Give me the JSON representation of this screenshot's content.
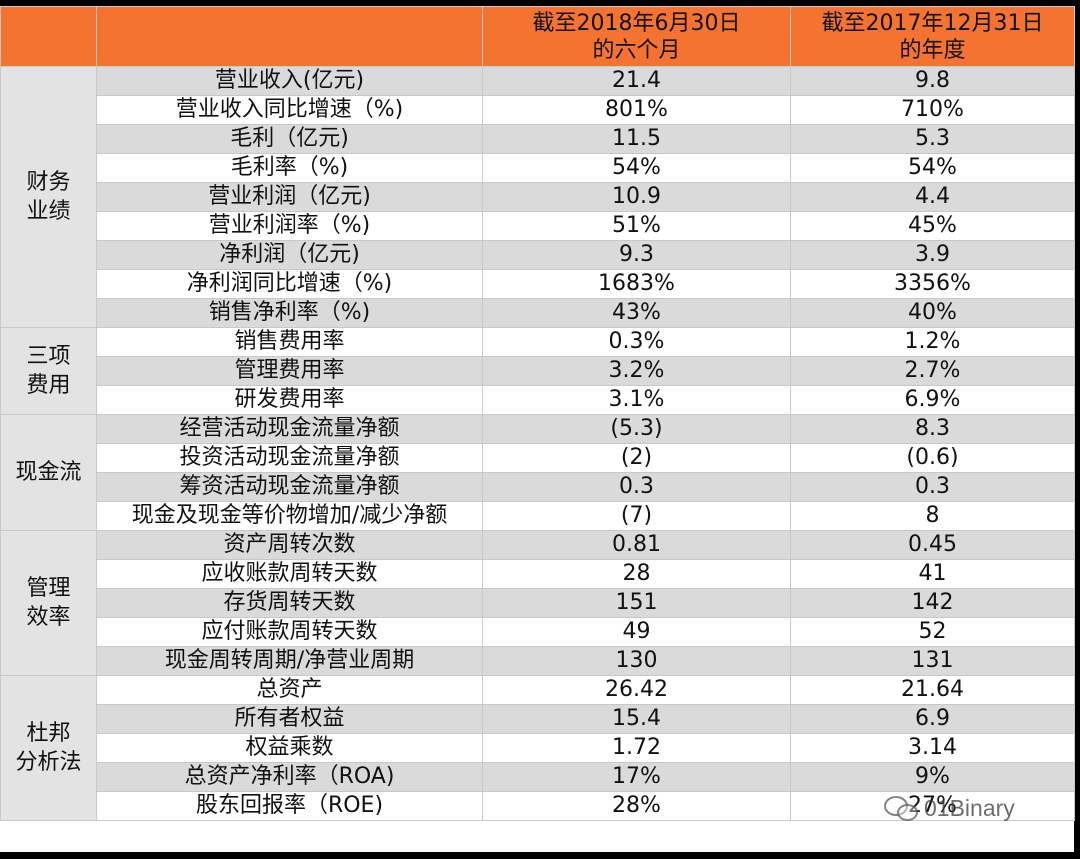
{
  "table": {
    "columns": [
      "",
      "截至2018年6月30日的六个月",
      "截至2017年12月31日的年度"
    ],
    "header": {
      "col1_line1": "截至2018年6月30日",
      "col1_line2": "的六个月",
      "col2_line1": "截至2017年12月31日",
      "col2_line2": "的年度"
    },
    "groups": [
      {
        "label_lines": [
          "财务",
          "业绩"
        ],
        "rows": [
          {
            "metric": "营业收入(亿元)",
            "v2018": "21.4",
            "v2017": "9.8"
          },
          {
            "metric": "营业收入同比增速（%)",
            "v2018": "801%",
            "v2017": "710%"
          },
          {
            "metric": "毛利（亿元)",
            "v2018": "11.5",
            "v2017": "5.3"
          },
          {
            "metric": "毛利率（%)",
            "v2018": "54%",
            "v2017": "54%"
          },
          {
            "metric": "营业利润（亿元)",
            "v2018": "10.9",
            "v2017": "4.4"
          },
          {
            "metric": "营业利润率（%)",
            "v2018": "51%",
            "v2017": "45%"
          },
          {
            "metric": "净利润（亿元)",
            "v2018": "9.3",
            "v2017": "3.9"
          },
          {
            "metric": "净利润同比增速（%)",
            "v2018": "1683%",
            "v2017": "3356%"
          },
          {
            "metric": "销售净利率（%)",
            "v2018": "43%",
            "v2017": "40%"
          }
        ]
      },
      {
        "label_lines": [
          "三项",
          "费用"
        ],
        "rows": [
          {
            "metric": "销售费用率",
            "v2018": "0.3%",
            "v2017": "1.2%"
          },
          {
            "metric": "管理费用率",
            "v2018": "3.2%",
            "v2017": "2.7%"
          },
          {
            "metric": "研发费用率",
            "v2018": "3.1%",
            "v2017": "6.9%"
          }
        ]
      },
      {
        "label_lines": [
          "现金流"
        ],
        "rows": [
          {
            "metric": "经营活动现金流量净额",
            "v2018": "(5.3)",
            "v2017": "8.3"
          },
          {
            "metric": "投资活动现金流量净额",
            "v2018": "(2)",
            "v2017": "(0.6)"
          },
          {
            "metric": "筹资活动现金流量净额",
            "v2018": "0.3",
            "v2017": "0.3"
          },
          {
            "metric": "现金及现金等价物增加/减少净额",
            "v2018": "(7)",
            "v2017": "8"
          }
        ]
      },
      {
        "label_lines": [
          "管理",
          "效率"
        ],
        "rows": [
          {
            "metric": "资产周转次数",
            "v2018": "0.81",
            "v2017": "0.45"
          },
          {
            "metric": "应收账款周转天数",
            "v2018": "28",
            "v2017": "41"
          },
          {
            "metric": "存货周转天数",
            "v2018": "151",
            "v2017": "142"
          },
          {
            "metric": "应付账款周转天数",
            "v2018": "49",
            "v2017": "52"
          },
          {
            "metric": "现金周转周期/净营业周期",
            "v2018": "130",
            "v2017": "131"
          }
        ]
      },
      {
        "label_lines": [
          "杜邦",
          "分析法"
        ],
        "rows": [
          {
            "metric": "总资产",
            "v2018": "26.42",
            "v2017": "21.64"
          },
          {
            "metric": "所有者权益",
            "v2018": "15.4",
            "v2017": "6.9"
          },
          {
            "metric": "权益乘数",
            "v2018": "1.72",
            "v2017": "3.14"
          },
          {
            "metric": "总资产净利率（ROA)",
            "v2018": "17%",
            "v2017": "9%"
          },
          {
            "metric": "股东回报率（ROE)",
            "v2018": "28%",
            "v2017": "27%"
          }
        ]
      }
    ]
  },
  "watermark": {
    "icon": "wechat-icon",
    "text": "01Binary"
  },
  "colors": {
    "header_bg": "#f47330",
    "category_bg": "#e3e3e3",
    "shaded_row_bg": "#dadada",
    "row_bg": "#ffffff"
  }
}
